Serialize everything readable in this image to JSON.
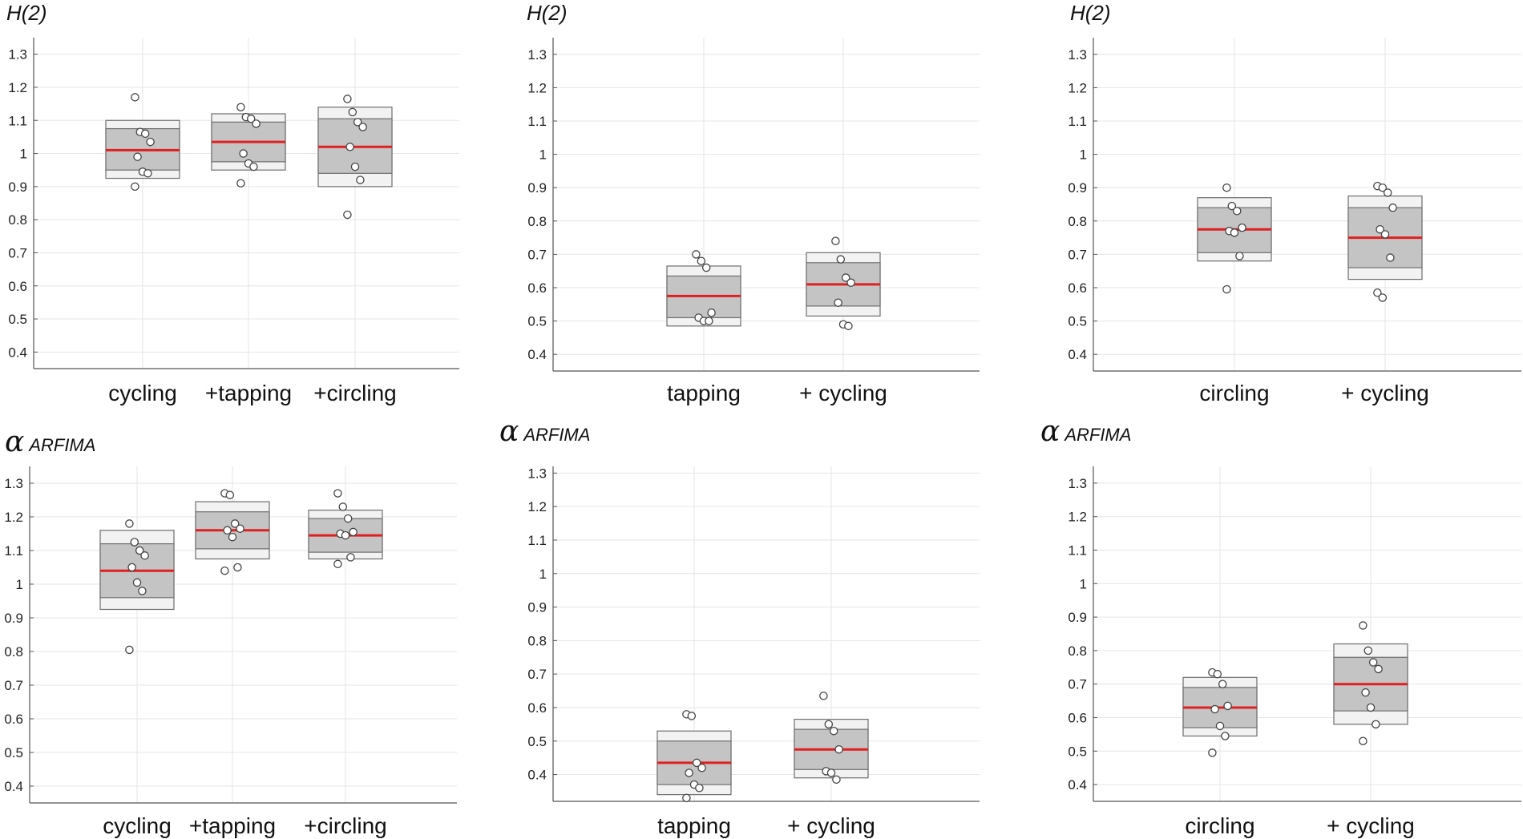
{
  "chart_data": [
    {
      "type": "boxplot",
      "title": "H(2)",
      "title_symbol": "",
      "title_text": "H(2)",
      "ylim": [
        0.35,
        1.35
      ],
      "yticks": [
        "1.3",
        "1.2",
        "1.1",
        "1",
        "0.9",
        "0.8",
        "0.7",
        "0.6",
        "0.5",
        "0.4"
      ],
      "grid": true,
      "categories": [
        "cycling",
        "+tapping",
        "+circling"
      ],
      "boxes": [
        {
          "median": 1.01,
          "ci_low": 0.95,
          "ci_high": 1.075,
          "sd_low": 0.925,
          "sd_high": 1.1,
          "points": [
            1.17,
            1.065,
            1.06,
            1.035,
            0.99,
            0.945,
            0.94,
            0.9
          ]
        },
        {
          "median": 1.035,
          "ci_low": 0.975,
          "ci_high": 1.095,
          "sd_low": 0.95,
          "sd_high": 1.12,
          "points": [
            1.14,
            1.11,
            1.105,
            1.09,
            1.0,
            0.97,
            0.96,
            0.91
          ]
        },
        {
          "median": 1.02,
          "ci_low": 0.94,
          "ci_high": 1.105,
          "sd_low": 0.9,
          "sd_high": 1.14,
          "points": [
            1.165,
            1.125,
            1.095,
            1.08,
            1.02,
            0.96,
            0.92,
            0.815
          ]
        }
      ]
    },
    {
      "type": "boxplot",
      "title": "H(2)",
      "title_symbol": "",
      "title_text": "H(2)",
      "ylim": [
        0.35,
        1.35
      ],
      "yticks": [
        "1.3",
        "1.2",
        "1.1",
        "1",
        "0.9",
        "0.8",
        "0.7",
        "0.6",
        "0.5",
        "0.4"
      ],
      "grid": true,
      "categories": [
        "tapping",
        "+ cycling"
      ],
      "boxes": [
        {
          "median": 0.575,
          "ci_low": 0.51,
          "ci_high": 0.635,
          "sd_low": 0.485,
          "sd_high": 0.665,
          "points": [
            0.7,
            0.68,
            0.66,
            0.525,
            0.51,
            0.5,
            0.5
          ]
        },
        {
          "median": 0.61,
          "ci_low": 0.545,
          "ci_high": 0.675,
          "sd_low": 0.515,
          "sd_high": 0.705,
          "points": [
            0.74,
            0.685,
            0.63,
            0.615,
            0.555,
            0.49,
            0.485
          ]
        }
      ]
    },
    {
      "type": "boxplot",
      "title": "H(2)",
      "title_symbol": "",
      "title_text": "H(2)",
      "ylim": [
        0.35,
        1.35
      ],
      "yticks": [
        "1.3",
        "1.2",
        "1.1",
        "1",
        "0.9",
        "0.8",
        "0.7",
        "0.6",
        "0.5",
        "0.4"
      ],
      "grid": true,
      "categories": [
        "circling",
        "+ cycling"
      ],
      "boxes": [
        {
          "median": 0.775,
          "ci_low": 0.705,
          "ci_high": 0.84,
          "sd_low": 0.68,
          "sd_high": 0.87,
          "points": [
            0.9,
            0.845,
            0.83,
            0.78,
            0.77,
            0.765,
            0.695,
            0.595
          ]
        },
        {
          "median": 0.75,
          "ci_low": 0.66,
          "ci_high": 0.84,
          "sd_low": 0.625,
          "sd_high": 0.875,
          "points": [
            0.905,
            0.9,
            0.885,
            0.84,
            0.775,
            0.76,
            0.69,
            0.585,
            0.57
          ]
        }
      ]
    },
    {
      "type": "boxplot",
      "title": "α ARFIMA",
      "title_symbol": "α",
      "title_text": "ARFIMA",
      "ylim": [
        0.35,
        1.35
      ],
      "yticks": [
        "1.3",
        "1.2",
        "1.1",
        "1",
        "0.9",
        "0.8",
        "0.7",
        "0.6",
        "0.5",
        "0.4"
      ],
      "grid": true,
      "categories": [
        "cycling",
        "+tapping",
        "+circling"
      ],
      "boxes": [
        {
          "median": 1.04,
          "ci_low": 0.96,
          "ci_high": 1.12,
          "sd_low": 0.925,
          "sd_high": 1.16,
          "points": [
            1.18,
            1.125,
            1.1,
            1.085,
            1.05,
            1.005,
            0.98,
            0.805
          ]
        },
        {
          "median": 1.16,
          "ci_low": 1.105,
          "ci_high": 1.215,
          "sd_low": 1.075,
          "sd_high": 1.245,
          "points": [
            1.27,
            1.265,
            1.18,
            1.165,
            1.16,
            1.14,
            1.05,
            1.04
          ]
        },
        {
          "median": 1.145,
          "ci_low": 1.095,
          "ci_high": 1.195,
          "sd_low": 1.075,
          "sd_high": 1.22,
          "points": [
            1.27,
            1.23,
            1.195,
            1.155,
            1.15,
            1.145,
            1.08,
            1.06
          ]
        }
      ]
    },
    {
      "type": "boxplot",
      "title": "α ARFIMA",
      "title_symbol": "α",
      "title_text": "ARFIMA",
      "ylim": [
        0.32,
        1.32
      ],
      "yticks": [
        "1.3",
        "1.2",
        "1.1",
        "1",
        "0.9",
        "0.8",
        "0.7",
        "0.6",
        "0.5",
        "0.4"
      ],
      "grid": true,
      "categories": [
        "tapping",
        "+ cycling"
      ],
      "boxes": [
        {
          "median": 0.435,
          "ci_low": 0.37,
          "ci_high": 0.5,
          "sd_low": 0.34,
          "sd_high": 0.53,
          "points": [
            0.58,
            0.575,
            0.435,
            0.42,
            0.405,
            0.37,
            0.36,
            0.33
          ]
        },
        {
          "median": 0.475,
          "ci_low": 0.415,
          "ci_high": 0.535,
          "sd_low": 0.39,
          "sd_high": 0.565,
          "points": [
            0.635,
            0.55,
            0.53,
            0.475,
            0.41,
            0.405,
            0.385
          ]
        }
      ]
    },
    {
      "type": "boxplot",
      "title": "α ARFIMA",
      "title_symbol": "α",
      "title_text": "ARFIMA",
      "ylim": [
        0.35,
        1.35
      ],
      "yticks": [
        "1.3",
        "1.2",
        "1.1",
        "1",
        "0.9",
        "0.8",
        "0.7",
        "0.6",
        "0.5",
        "0.4"
      ],
      "grid": true,
      "categories": [
        "circling",
        "+ cycling"
      ],
      "boxes": [
        {
          "median": 0.63,
          "ci_low": 0.57,
          "ci_high": 0.69,
          "sd_low": 0.545,
          "sd_high": 0.72,
          "points": [
            0.735,
            0.73,
            0.7,
            0.635,
            0.625,
            0.575,
            0.545,
            0.495
          ]
        },
        {
          "median": 0.7,
          "ci_low": 0.62,
          "ci_high": 0.78,
          "sd_low": 0.58,
          "sd_high": 0.82,
          "points": [
            0.875,
            0.8,
            0.765,
            0.745,
            0.675,
            0.63,
            0.58,
            0.53
          ]
        }
      ]
    }
  ],
  "colors": {
    "box_outer": "#f2f2f2",
    "box_inner": "#c4c4c4",
    "box_edge": "#6e6e6e",
    "median": "#e02020",
    "point_fill": "#ffffff",
    "point_edge": "#444444",
    "grid": "#e6e6e6",
    "axis": "#555555"
  }
}
